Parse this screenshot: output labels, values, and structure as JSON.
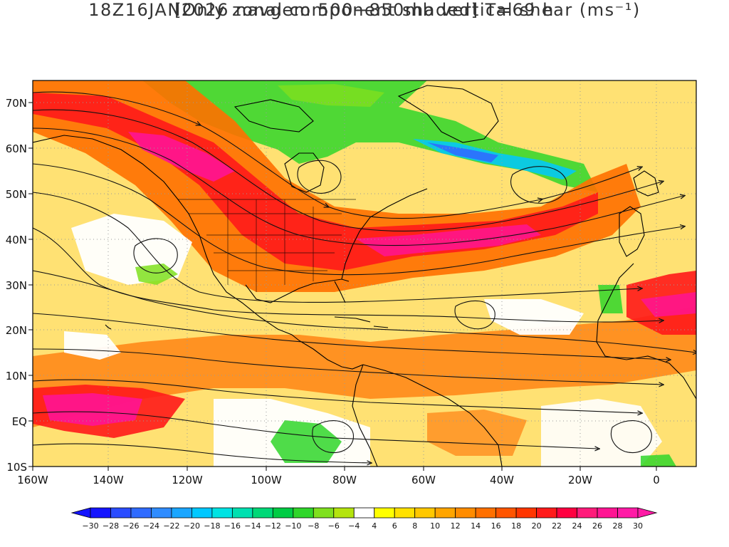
{
  "title": {
    "line1": "18Z16JAN2026 navgem 500−850mb vertical shear (ms⁻¹)",
    "line2": "[Only zonal component shaded] T=69 h"
  },
  "map": {
    "x_ticks": [
      "160W",
      "140W",
      "120W",
      "100W",
      "80W",
      "60W",
      "40W",
      "20W",
      "0"
    ],
    "y_ticks": [
      "70N",
      "60N",
      "50N",
      "40N",
      "30N",
      "20N",
      "10N",
      "EQ",
      "10S"
    ]
  },
  "colorbar": {
    "labels": [
      "−30",
      "−28",
      "−26",
      "−24",
      "−22",
      "−20",
      "−18",
      "−16",
      "−14",
      "−12",
      "−10",
      "−8",
      "−6",
      "−4",
      "4",
      "6",
      "8",
      "10",
      "12",
      "14",
      "16",
      "18",
      "20",
      "22",
      "24",
      "26",
      "28",
      "30"
    ],
    "colors": [
      "#1414ff",
      "#2a4cff",
      "#2f6bff",
      "#2f8cff",
      "#1aa6ff",
      "#00c8ff",
      "#00e3e3",
      "#00e0b0",
      "#00d877",
      "#00cc44",
      "#30d62a",
      "#7fe01e",
      "#b4e40e",
      "#ffffff",
      "#ffff00",
      "#ffe100",
      "#ffc800",
      "#ffa500",
      "#ff8c00",
      "#ff7000",
      "#ff5500",
      "#ff3600",
      "#ff1a1a",
      "#ff0040",
      "#ff1a7a",
      "#ff1493",
      "#ff1aa6"
    ]
  }
}
